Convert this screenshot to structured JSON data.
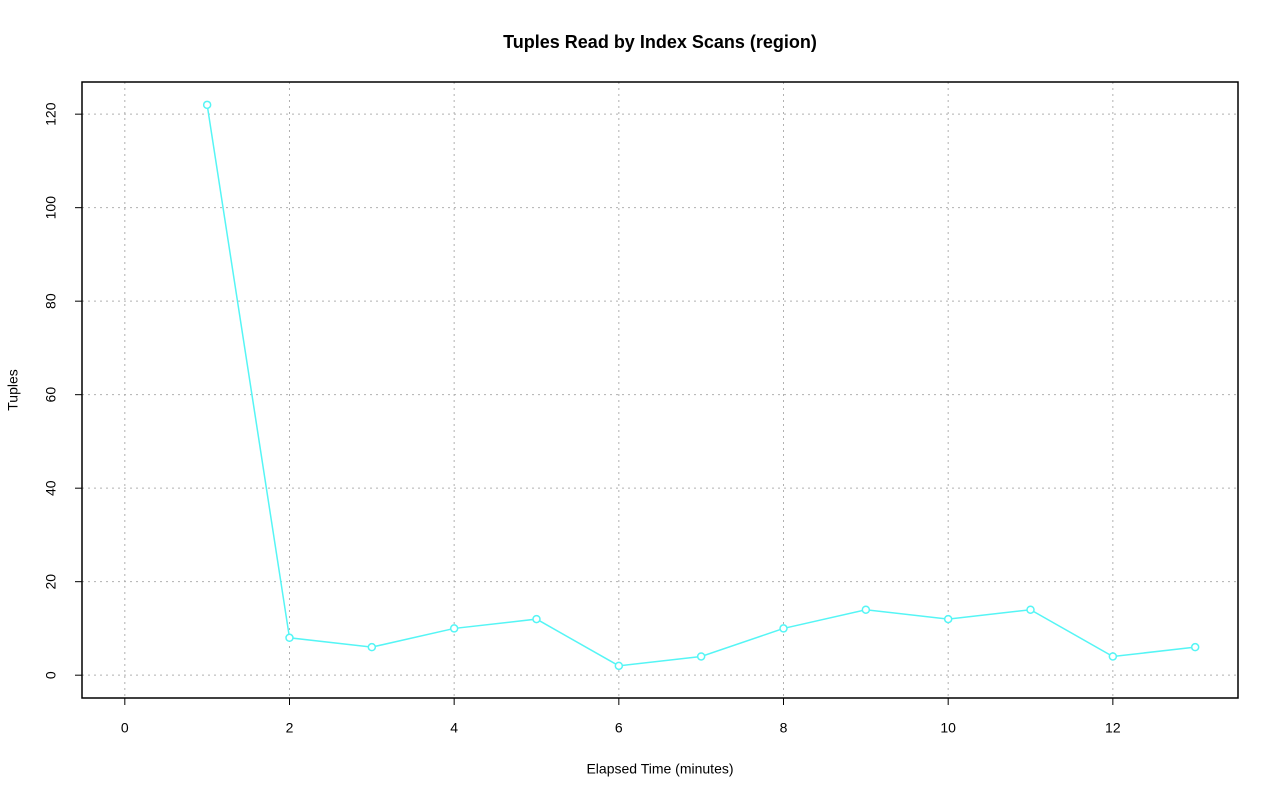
{
  "chart_data": {
    "type": "line",
    "title": "Tuples Read by Index Scans (region)",
    "x_label": "Elapsed Time (minutes)",
    "y_label": "Tuples",
    "x": [
      1,
      2,
      3,
      4,
      5,
      6,
      7,
      8,
      9,
      10,
      11,
      12,
      13
    ],
    "series": [
      {
        "name": "region",
        "color": "#55f5f5",
        "values": [
          122,
          8,
          6,
          10,
          12,
          2,
          4,
          10,
          14,
          12,
          14,
          4,
          6
        ]
      }
    ],
    "xlim": [
      -0.52,
      13.52
    ],
    "xticks": [
      0,
      2,
      4,
      6,
      8,
      10,
      12
    ],
    "ylim": [
      -4.88,
      126.88
    ],
    "yticks": [
      0,
      20,
      40,
      60,
      80,
      100,
      120
    ],
    "grid": true
  }
}
